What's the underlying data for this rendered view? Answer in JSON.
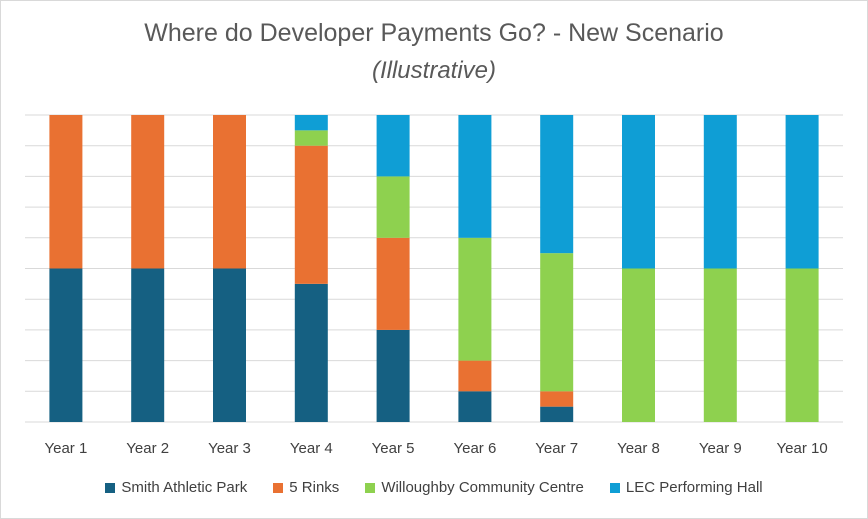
{
  "chart_data": {
    "type": "bar",
    "stacked": true,
    "title": "Where do Developer Payments Go? - New Scenario",
    "subtitle": "(Illustrative)",
    "categories": [
      "Year 1",
      "Year 2",
      "Year 3",
      "Year 4",
      "Year 5",
      "Year 6",
      "Year 7",
      "Year 8",
      "Year 9",
      "Year 10"
    ],
    "ylim": [
      0,
      100
    ],
    "grid": true,
    "legend_position": "bottom",
    "series": [
      {
        "name": "Smith Athletic Park",
        "color": "#156082",
        "values": [
          50,
          50,
          50,
          45,
          30,
          10,
          5,
          0,
          0,
          0
        ]
      },
      {
        "name": "5 Rinks",
        "color": "#e97132",
        "values": [
          50,
          50,
          50,
          45,
          30,
          10,
          5,
          0,
          0,
          0
        ]
      },
      {
        "name": "Willoughby Community Centre",
        "color": "#8ed14f",
        "values": [
          0,
          0,
          0,
          5,
          20,
          40,
          45,
          50,
          50,
          50
        ]
      },
      {
        "name": "LEC Performing Hall",
        "color": "#0f9ed5",
        "values": [
          0,
          0,
          0,
          5,
          20,
          40,
          45,
          50,
          50,
          50
        ]
      }
    ]
  }
}
